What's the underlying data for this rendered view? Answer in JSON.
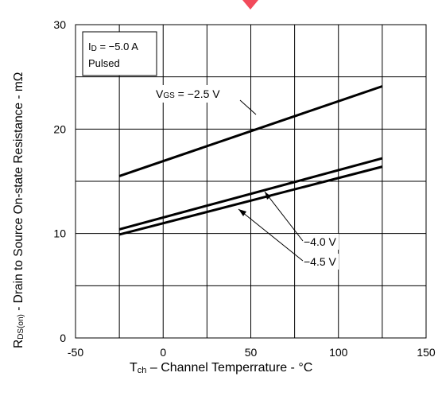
{
  "chart_data": {
    "type": "line",
    "xlabel": {
      "main": "T",
      "sub": "ch",
      "rest": " – Channel Temperrature - °C"
    },
    "ylabel": {
      "main": "R",
      "sub": "DS(on)",
      "rest": " - Drain to Source On-state Resistance - mΩ"
    },
    "xlim": [
      -50,
      150
    ],
    "ylim": [
      0,
      30
    ],
    "x_ticks": [
      -50,
      0,
      50,
      100,
      150
    ],
    "y_ticks": [
      0,
      10,
      20,
      30
    ],
    "grid": true,
    "condition": {
      "id_main": "I",
      "id_sub": "D",
      "id_rest": " = −5.0 A",
      "mode": "Pulsed"
    },
    "series": [
      {
        "name": "VGS = −2.5 V",
        "x": [
          -25,
          125
        ],
        "y": [
          15.5,
          24.1
        ]
      },
      {
        "name": "−4.0 V",
        "x": [
          -25,
          125
        ],
        "y": [
          10.4,
          17.2
        ]
      },
      {
        "name": "−4.5 V",
        "x": [
          -25,
          125
        ],
        "y": [
          9.9,
          16.4
        ]
      }
    ],
    "annotations": {
      "vgs25": {
        "main": "V",
        "sub": "GS",
        "rest": " = −2.5 V"
      },
      "vgs40": "−4.0 V",
      "vgs45": "−4.5 V"
    },
    "line_color": "#000000",
    "grid_color": "#000000"
  }
}
